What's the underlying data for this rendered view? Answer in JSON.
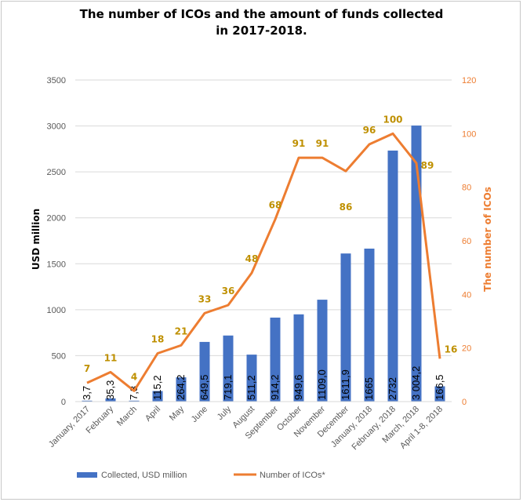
{
  "chart_data": {
    "type": "bar",
    "title_line1": "The number of ICOs and the amount of funds collected",
    "title_line2": "in 2017-2018.",
    "ylabel": "USD million",
    "y2label": "The number of ICOs",
    "ylim": [
      0,
      3500
    ],
    "yticks": [
      "0",
      "500",
      "1000",
      "1500",
      "2000",
      "2500",
      "3000",
      "3500"
    ],
    "y2lim": [
      0,
      120
    ],
    "y2ticks": [
      "0",
      "20",
      "40",
      "60",
      "80",
      "100",
      "120"
    ],
    "categories": [
      "January, 2017",
      "February",
      "March",
      "April",
      "May",
      "June",
      "July",
      "August",
      "September",
      "October",
      "November",
      "December",
      "January, 2018",
      "February, 2018",
      "March, 2018",
      "April 1-8, 2018"
    ],
    "series": [
      {
        "name": "Collected, USD million",
        "type": "bar",
        "color": "#4472c4",
        "values": [
          3.7,
          35.3,
          7.3,
          115.2,
          264.2,
          649.5,
          719.1,
          511.2,
          914.2,
          949.6,
          1109.0,
          1611.9,
          1665,
          2732,
          3004.2,
          166.5
        ],
        "labels": [
          "3,7",
          "35,3",
          "7,3",
          "115,2",
          "264,2",
          "649,5",
          "719,1",
          "511,2",
          "914,2",
          "949,6",
          "1109,0",
          "1611,9",
          "1665",
          "2732",
          "3 004,2",
          "166,5"
        ]
      },
      {
        "name": "Number of ICOs*",
        "type": "line",
        "axis": "right",
        "color": "#ed7d31",
        "values": [
          7,
          11,
          4,
          18,
          21,
          33,
          36,
          48,
          68,
          91,
          91,
          86,
          96,
          100,
          89,
          16
        ],
        "labels": [
          "7",
          "11",
          "4",
          "18",
          "21",
          "33",
          "36",
          "48",
          "68",
          "91",
          "91",
          "86",
          "96",
          "100",
          "89",
          "16"
        ]
      }
    ],
    "grid": true,
    "legend": "bottom"
  }
}
